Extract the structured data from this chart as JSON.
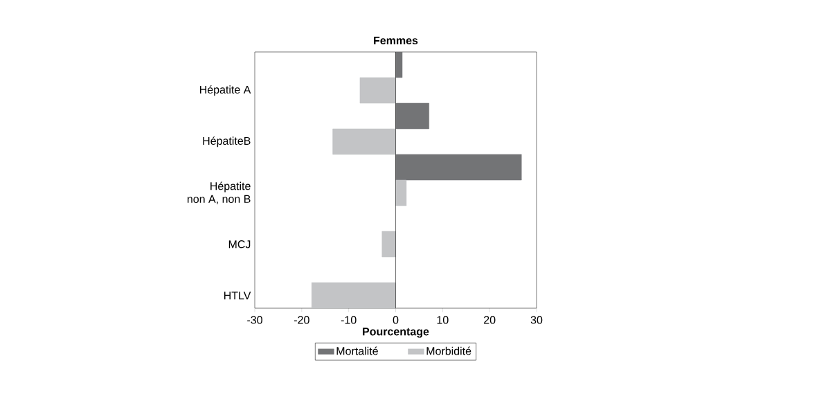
{
  "chart_data": {
    "type": "bar",
    "orientation": "horizontal",
    "title": "Femmes",
    "xlabel": "Pourcentage",
    "categories": [
      "Hépatite A",
      "HépatiteB",
      "Hépatite\nnon A, non B",
      "MCJ",
      "HTLV"
    ],
    "series": [
      {
        "name": "Mortalité",
        "color": "#737476",
        "values": [
          1.4,
          7.1,
          26.8,
          null,
          null
        ]
      },
      {
        "name": "Morbidité",
        "color": "#c3c4c6",
        "values": [
          -7.6,
          -13.4,
          2.3,
          -2.9,
          -17.9
        ]
      }
    ],
    "xlim": [
      -30,
      30
    ],
    "xticks": [
      -30,
      -20,
      -10,
      0,
      10,
      20,
      30
    ],
    "legend": "bottom"
  }
}
